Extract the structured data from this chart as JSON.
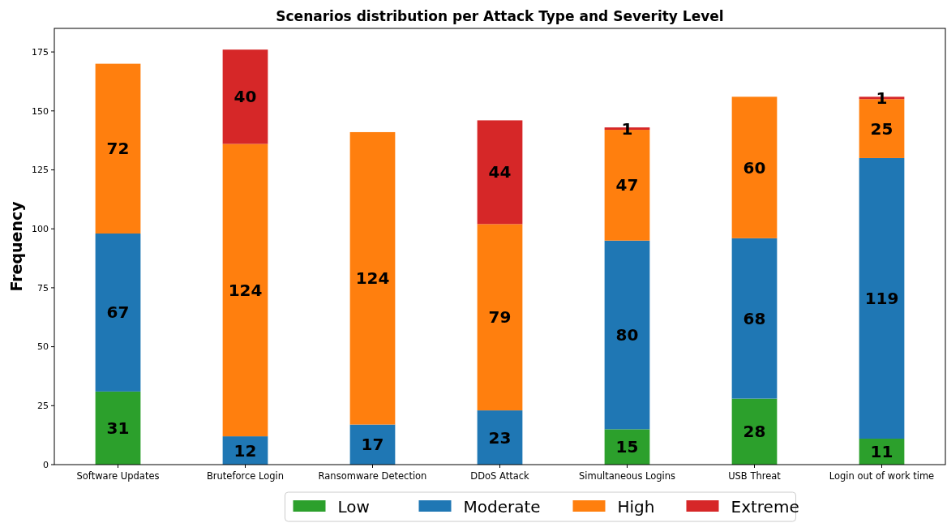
{
  "chart_data": {
    "type": "bar",
    "stacked": true,
    "title": "Scenarios distribution per Attack Type and Severity Level",
    "ylabel": "Frequency",
    "categories": [
      "Software Updates",
      "Bruteforce Login",
      "Ransomware Detection",
      "DDoS Attack",
      "Simultaneous Logins",
      "USB Threat",
      "Login out of work time"
    ],
    "series": [
      {
        "name": "Low",
        "color": "#2ca02c",
        "values": [
          31,
          null,
          null,
          null,
          15,
          28,
          11
        ]
      },
      {
        "name": "Moderate",
        "color": "#1f77b4",
        "values": [
          67,
          12,
          17,
          23,
          80,
          68,
          119
        ]
      },
      {
        "name": "High",
        "color": "#ff7f0e",
        "values": [
          72,
          124,
          124,
          79,
          47,
          60,
          25
        ]
      },
      {
        "name": "Extreme",
        "color": "#d62728",
        "values": [
          null,
          40,
          null,
          44,
          1,
          null,
          1
        ]
      }
    ],
    "ylim": [
      0,
      185
    ],
    "yticks": [
      0,
      25,
      50,
      75,
      100,
      125,
      150,
      175
    ],
    "data_labels": true,
    "legend": "bottom",
    "grid": false
  }
}
